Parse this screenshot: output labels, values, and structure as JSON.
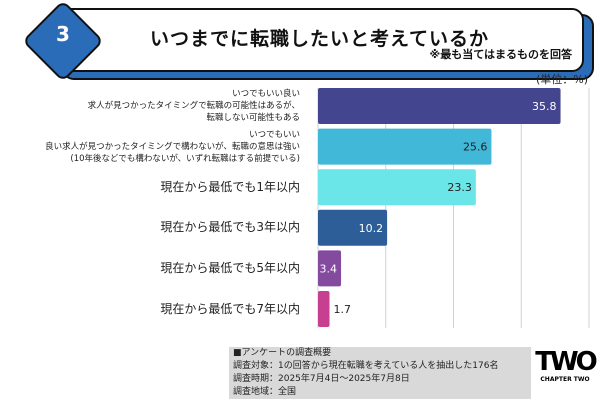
{
  "header": {
    "number": "3",
    "title": "いつまでに転職したいと考えているか",
    "subtitle": "※最も当てはまるものを回答"
  },
  "unit_label": "(単位：%)",
  "chart_data": {
    "type": "bar",
    "orientation": "horizontal",
    "categories": [
      [
        "いつでもいい良い",
        "求人が見つかったタイミングで転職の可能性はあるが、",
        "転職しない可能性もある"
      ],
      [
        "いつでもいい",
        "良い求人が見つかったタイミングで構わないが、転職の意思は強い",
        "(10年後などでも構わないが、いずれ転職はする前提でいる)"
      ],
      [
        "現在から最低でも1年以内"
      ],
      [
        "現在から最低でも3年以内"
      ],
      [
        "現在から最低でも5年以内"
      ],
      [
        "現在から最低でも7年以内"
      ]
    ],
    "values": [
      35.8,
      25.6,
      23.3,
      10.2,
      3.4,
      1.7
    ],
    "value_labels": [
      "35.8",
      "25.6",
      "23.3",
      "10.2",
      "3.4",
      "1.7"
    ],
    "colors": [
      "#43458f",
      "#41b8d8",
      "#6be6e8",
      "#2d5e98",
      "#844a9e",
      "#c63f90"
    ],
    "xlim": [
      0,
      40
    ],
    "grid": true
  },
  "survey": {
    "heading": "■アンケートの調査概要",
    "lines": [
      "調査対象：1の回答から現在転職を考えている人を抽出した176名",
      "調査時期：2025年7月4日〜2025年7月8日",
      "調査地域：全国"
    ]
  },
  "logo": {
    "mark": "TWO",
    "text": "CHAPTER TWO"
  }
}
